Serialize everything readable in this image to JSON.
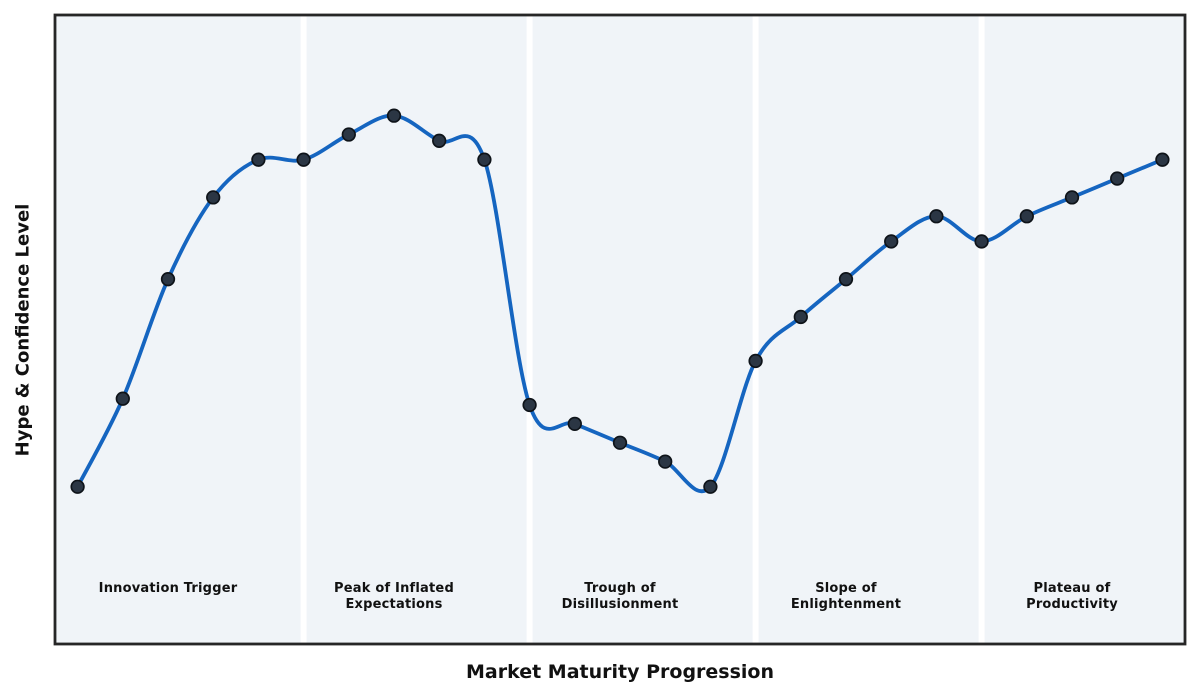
{
  "chart_data": {
    "type": "line",
    "title": "",
    "xlabel": "Market Maturity Progression",
    "ylabel": "Hype & Confidence Level",
    "x": [
      0,
      1,
      2,
      3,
      4,
      5,
      6,
      7,
      8,
      9,
      10,
      11,
      12,
      13,
      14,
      15,
      16,
      17,
      18,
      19,
      20,
      21,
      22,
      23,
      24
    ],
    "y": [
      25,
      39,
      58,
      71,
      77,
      77,
      81,
      84,
      80,
      77,
      38,
      35,
      32,
      29,
      25,
      45,
      52,
      58,
      64,
      68,
      64,
      68,
      71,
      74,
      77
    ],
    "xlim": [
      -0.5,
      24.5
    ],
    "ylim": [
      0,
      100
    ],
    "grid": false,
    "legend": false,
    "line_style": "smooth-spline",
    "marker": "circle",
    "phase_dividers_x": [
      5,
      10,
      15,
      20
    ],
    "phase_labels": [
      {
        "text": "Innovation Trigger",
        "x": 2
      },
      {
        "text": "Peak of Inflated\nExpectations",
        "x": 7
      },
      {
        "text": "Trough of\nDisillusionment",
        "x": 12
      },
      {
        "text": "Slope of\nEnlightenment",
        "x": 17
      },
      {
        "text": "Plateau of\nProductivity",
        "x": 22
      }
    ],
    "colors": {
      "line": "#1565c0",
      "marker_fill": "#2b3644",
      "marker_edge": "#0e1319",
      "plot_background": "#f0f4f8",
      "phase_divider": "#ffffff",
      "border": "#262626",
      "text": "#111111",
      "figure_background": "#ffffff"
    }
  }
}
